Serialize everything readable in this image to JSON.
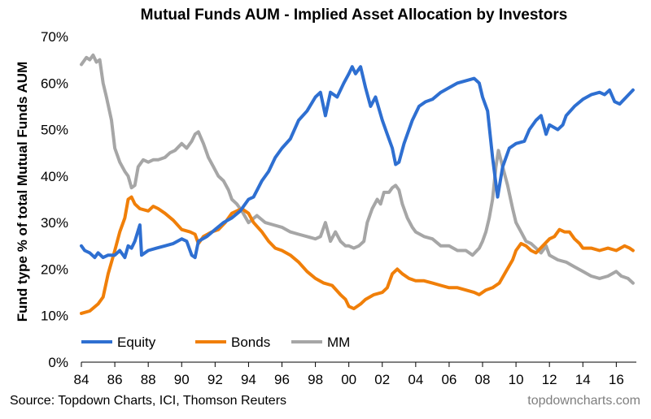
{
  "chart_data": {
    "type": "line",
    "title": "Mutual Funds AUM - Implied Asset Allocation by Investors",
    "ylabel": "Fund type % of total Mutual Funds AUM",
    "xlabel": "",
    "xlim": [
      1984,
      2017.2
    ],
    "ylim": [
      0,
      70
    ],
    "x_ticks": [
      1984,
      1986,
      1988,
      1990,
      1992,
      1994,
      1996,
      1998,
      2000,
      2002,
      2004,
      2006,
      2008,
      2010,
      2012,
      2014,
      2016
    ],
    "x_tick_labels": [
      "84",
      "86",
      "88",
      "90",
      "92",
      "94",
      "96",
      "98",
      "00",
      "02",
      "04",
      "06",
      "08",
      "10",
      "12",
      "14",
      "16"
    ],
    "y_ticks": [
      0,
      10,
      20,
      30,
      40,
      50,
      60,
      70
    ],
    "y_tick_labels": [
      "0%",
      "10%",
      "20%",
      "30%",
      "40%",
      "50%",
      "60%",
      "70%"
    ],
    "grid": false,
    "legend_position": "bottom-left",
    "source": "Source: Topdown Charts, ICI, Thomson Reuters",
    "watermark": "topdowncharts.com",
    "series": [
      {
        "name": "Equity",
        "color": "#2e6fd1",
        "points": [
          [
            1984.0,
            25
          ],
          [
            1984.2,
            24
          ],
          [
            1984.5,
            23.5
          ],
          [
            1984.8,
            22.5
          ],
          [
            1985.0,
            23.5
          ],
          [
            1985.3,
            22.5
          ],
          [
            1985.6,
            23
          ],
          [
            1986.0,
            23
          ],
          [
            1986.3,
            24
          ],
          [
            1986.6,
            22.5
          ],
          [
            1986.8,
            25
          ],
          [
            1987.0,
            24.5
          ],
          [
            1987.2,
            26
          ],
          [
            1987.5,
            29.5
          ],
          [
            1987.6,
            23
          ],
          [
            1988.0,
            24
          ],
          [
            1988.5,
            24.5
          ],
          [
            1989.0,
            25
          ],
          [
            1989.5,
            25.5
          ],
          [
            1990.0,
            26.5
          ],
          [
            1990.3,
            26
          ],
          [
            1990.6,
            23
          ],
          [
            1990.8,
            22.5
          ],
          [
            1991.0,
            26
          ],
          [
            1991.5,
            27
          ],
          [
            1992.0,
            28.5
          ],
          [
            1992.5,
            30
          ],
          [
            1993.0,
            31
          ],
          [
            1993.5,
            32.5
          ],
          [
            1994.0,
            35
          ],
          [
            1994.3,
            35.5
          ],
          [
            1994.8,
            39
          ],
          [
            1995.2,
            41
          ],
          [
            1995.6,
            44
          ],
          [
            1996.0,
            46
          ],
          [
            1996.5,
            48
          ],
          [
            1997.0,
            52
          ],
          [
            1997.5,
            54
          ],
          [
            1998.0,
            57
          ],
          [
            1998.3,
            58
          ],
          [
            1998.6,
            53
          ],
          [
            1998.9,
            58
          ],
          [
            1999.3,
            57
          ],
          [
            1999.7,
            60
          ],
          [
            2000.0,
            62
          ],
          [
            2000.2,
            63.5
          ],
          [
            2000.4,
            62
          ],
          [
            2000.7,
            63.5
          ],
          [
            2001.0,
            59
          ],
          [
            2001.3,
            55
          ],
          [
            2001.6,
            57
          ],
          [
            2002.0,
            52
          ],
          [
            2002.3,
            49
          ],
          [
            2002.6,
            46
          ],
          [
            2002.8,
            42.5
          ],
          [
            2003.0,
            43
          ],
          [
            2003.3,
            47
          ],
          [
            2003.8,
            52
          ],
          [
            2004.2,
            55
          ],
          [
            2004.6,
            56
          ],
          [
            2005.0,
            56.5
          ],
          [
            2005.5,
            58
          ],
          [
            2006.0,
            59
          ],
          [
            2006.5,
            60
          ],
          [
            2007.0,
            60.5
          ],
          [
            2007.5,
            61
          ],
          [
            2007.8,
            60
          ],
          [
            2008.0,
            57
          ],
          [
            2008.3,
            54
          ],
          [
            2008.6,
            44
          ],
          [
            2008.9,
            35.5
          ],
          [
            2009.2,
            42
          ],
          [
            2009.6,
            46
          ],
          [
            2010.0,
            47
          ],
          [
            2010.5,
            47.5
          ],
          [
            2010.8,
            50
          ],
          [
            2011.2,
            52
          ],
          [
            2011.5,
            53
          ],
          [
            2011.8,
            49
          ],
          [
            2012.0,
            51
          ],
          [
            2012.5,
            50
          ],
          [
            2012.8,
            51
          ],
          [
            2013.0,
            53
          ],
          [
            2013.5,
            55
          ],
          [
            2014.0,
            56.5
          ],
          [
            2014.5,
            57.5
          ],
          [
            2015.0,
            58
          ],
          [
            2015.3,
            57.5
          ],
          [
            2015.6,
            58.5
          ],
          [
            2015.9,
            56
          ],
          [
            2016.2,
            55.5
          ],
          [
            2016.6,
            57
          ],
          [
            2017.0,
            58.5
          ]
        ]
      },
      {
        "name": "Bonds",
        "color": "#f07f09",
        "points": [
          [
            1984.0,
            10.5
          ],
          [
            1984.5,
            11
          ],
          [
            1985.0,
            12.5
          ],
          [
            1985.3,
            14
          ],
          [
            1985.6,
            19
          ],
          [
            1986.0,
            24
          ],
          [
            1986.3,
            28
          ],
          [
            1986.6,
            31
          ],
          [
            1986.8,
            35
          ],
          [
            1987.0,
            35.5
          ],
          [
            1987.2,
            34
          ],
          [
            1987.5,
            33
          ],
          [
            1988.0,
            32.5
          ],
          [
            1988.3,
            33.5
          ],
          [
            1988.6,
            33
          ],
          [
            1989.0,
            32
          ],
          [
            1989.5,
            30.5
          ],
          [
            1990.0,
            28.5
          ],
          [
            1990.5,
            28
          ],
          [
            1990.8,
            27.5
          ],
          [
            1991.0,
            25.5
          ],
          [
            1991.3,
            27
          ],
          [
            1991.8,
            28
          ],
          [
            1992.2,
            28.5
          ],
          [
            1992.6,
            30
          ],
          [
            1993.0,
            32
          ],
          [
            1993.3,
            32.5
          ],
          [
            1993.6,
            33
          ],
          [
            1994.0,
            32
          ],
          [
            1994.3,
            30
          ],
          [
            1994.8,
            28
          ],
          [
            1995.2,
            26
          ],
          [
            1995.6,
            24.5
          ],
          [
            1996.0,
            24
          ],
          [
            1996.5,
            23
          ],
          [
            1997.0,
            21.5
          ],
          [
            1997.5,
            19.5
          ],
          [
            1998.0,
            18
          ],
          [
            1998.5,
            17
          ],
          [
            1999.0,
            16.5
          ],
          [
            1999.5,
            14.5
          ],
          [
            1999.8,
            13.5
          ],
          [
            2000.0,
            12
          ],
          [
            2000.3,
            11.5
          ],
          [
            2000.7,
            12.5
          ],
          [
            2001.0,
            13.5
          ],
          [
            2001.5,
            14.5
          ],
          [
            2002.0,
            15
          ],
          [
            2002.3,
            16
          ],
          [
            2002.6,
            19
          ],
          [
            2002.9,
            20
          ],
          [
            2003.2,
            19
          ],
          [
            2003.6,
            18
          ],
          [
            2004.0,
            17.5
          ],
          [
            2004.5,
            17.5
          ],
          [
            2005.0,
            17
          ],
          [
            2005.5,
            16.5
          ],
          [
            2006.0,
            16
          ],
          [
            2006.5,
            16
          ],
          [
            2007.0,
            15.5
          ],
          [
            2007.5,
            15
          ],
          [
            2007.8,
            14.5
          ],
          [
            2008.2,
            15.5
          ],
          [
            2008.6,
            16
          ],
          [
            2009.0,
            17
          ],
          [
            2009.4,
            19.5
          ],
          [
            2009.8,
            22
          ],
          [
            2010.0,
            24
          ],
          [
            2010.3,
            25.5
          ],
          [
            2010.6,
            25
          ],
          [
            2010.9,
            24
          ],
          [
            2011.2,
            23.5
          ],
          [
            2011.6,
            25
          ],
          [
            2012.0,
            26.5
          ],
          [
            2012.3,
            27
          ],
          [
            2012.6,
            28.5
          ],
          [
            2012.9,
            28
          ],
          [
            2013.2,
            28
          ],
          [
            2013.5,
            26.5
          ],
          [
            2013.8,
            25.5
          ],
          [
            2014.0,
            24.5
          ],
          [
            2014.5,
            24.5
          ],
          [
            2015.0,
            24
          ],
          [
            2015.5,
            24.5
          ],
          [
            2016.0,
            24
          ],
          [
            2016.5,
            25
          ],
          [
            2016.8,
            24.5
          ],
          [
            2017.0,
            24
          ]
        ]
      },
      {
        "name": "MM",
        "color": "#a6a6a6",
        "points": [
          [
            1984.0,
            64
          ],
          [
            1984.3,
            65.5
          ],
          [
            1984.5,
            65
          ],
          [
            1984.7,
            66
          ],
          [
            1984.9,
            64.5
          ],
          [
            1985.1,
            65
          ],
          [
            1985.3,
            60
          ],
          [
            1985.5,
            57
          ],
          [
            1985.8,
            52
          ],
          [
            1986.0,
            46
          ],
          [
            1986.3,
            43
          ],
          [
            1986.6,
            41
          ],
          [
            1986.8,
            40
          ],
          [
            1987.0,
            37.5
          ],
          [
            1987.2,
            38
          ],
          [
            1987.4,
            42
          ],
          [
            1987.7,
            43.5
          ],
          [
            1988.0,
            43
          ],
          [
            1988.3,
            43.5
          ],
          [
            1988.6,
            43.5
          ],
          [
            1989.0,
            44
          ],
          [
            1989.3,
            45
          ],
          [
            1989.6,
            45.5
          ],
          [
            1990.0,
            47
          ],
          [
            1990.3,
            46
          ],
          [
            1990.6,
            47.5
          ],
          [
            1990.8,
            49
          ],
          [
            1991.0,
            49.5
          ],
          [
            1991.3,
            47
          ],
          [
            1991.6,
            44
          ],
          [
            1991.9,
            42
          ],
          [
            1992.2,
            40
          ],
          [
            1992.5,
            39
          ],
          [
            1992.8,
            37
          ],
          [
            1993.0,
            35
          ],
          [
            1993.3,
            34
          ],
          [
            1993.6,
            32.5
          ],
          [
            1994.0,
            30
          ],
          [
            1994.5,
            31.5
          ],
          [
            1995.0,
            30
          ],
          [
            1995.5,
            29.5
          ],
          [
            1996.0,
            29
          ],
          [
            1996.5,
            28
          ],
          [
            1997.0,
            27.5
          ],
          [
            1997.5,
            27
          ],
          [
            1998.0,
            26.5
          ],
          [
            1998.3,
            27
          ],
          [
            1998.6,
            30
          ],
          [
            1998.9,
            26
          ],
          [
            1999.2,
            28
          ],
          [
            1999.5,
            26
          ],
          [
            1999.8,
            25
          ],
          [
            2000.0,
            25
          ],
          [
            2000.3,
            24.5
          ],
          [
            2000.6,
            25
          ],
          [
            2000.9,
            26
          ],
          [
            2001.1,
            30
          ],
          [
            2001.4,
            33
          ],
          [
            2001.7,
            35
          ],
          [
            2001.9,
            34
          ],
          [
            2002.1,
            36.5
          ],
          [
            2002.4,
            36.5
          ],
          [
            2002.6,
            37.5
          ],
          [
            2002.8,
            38
          ],
          [
            2003.0,
            37
          ],
          [
            2003.2,
            34
          ],
          [
            2003.5,
            31
          ],
          [
            2003.8,
            29
          ],
          [
            2004.0,
            28
          ],
          [
            2004.5,
            27
          ],
          [
            2005.0,
            26.5
          ],
          [
            2005.5,
            25
          ],
          [
            2006.0,
            25
          ],
          [
            2006.5,
            24
          ],
          [
            2007.0,
            24
          ],
          [
            2007.4,
            23
          ],
          [
            2007.8,
            24.5
          ],
          [
            2008.0,
            26
          ],
          [
            2008.2,
            28
          ],
          [
            2008.4,
            31
          ],
          [
            2008.6,
            35
          ],
          [
            2008.8,
            42
          ],
          [
            2008.95,
            45.5
          ],
          [
            2009.2,
            42
          ],
          [
            2009.5,
            38
          ],
          [
            2009.8,
            33
          ],
          [
            2010.0,
            30
          ],
          [
            2010.3,
            28
          ],
          [
            2010.6,
            26
          ],
          [
            2010.9,
            25.5
          ],
          [
            2011.2,
            24.5
          ],
          [
            2011.5,
            23.5
          ],
          [
            2011.8,
            25
          ],
          [
            2012.0,
            23
          ],
          [
            2012.5,
            22
          ],
          [
            2013.0,
            21.5
          ],
          [
            2013.5,
            20.5
          ],
          [
            2014.0,
            19.5
          ],
          [
            2014.5,
            18.5
          ],
          [
            2015.0,
            18
          ],
          [
            2015.5,
            18.5
          ],
          [
            2016.0,
            19.5
          ],
          [
            2016.3,
            18.5
          ],
          [
            2016.7,
            18
          ],
          [
            2017.0,
            17
          ]
        ]
      }
    ]
  }
}
